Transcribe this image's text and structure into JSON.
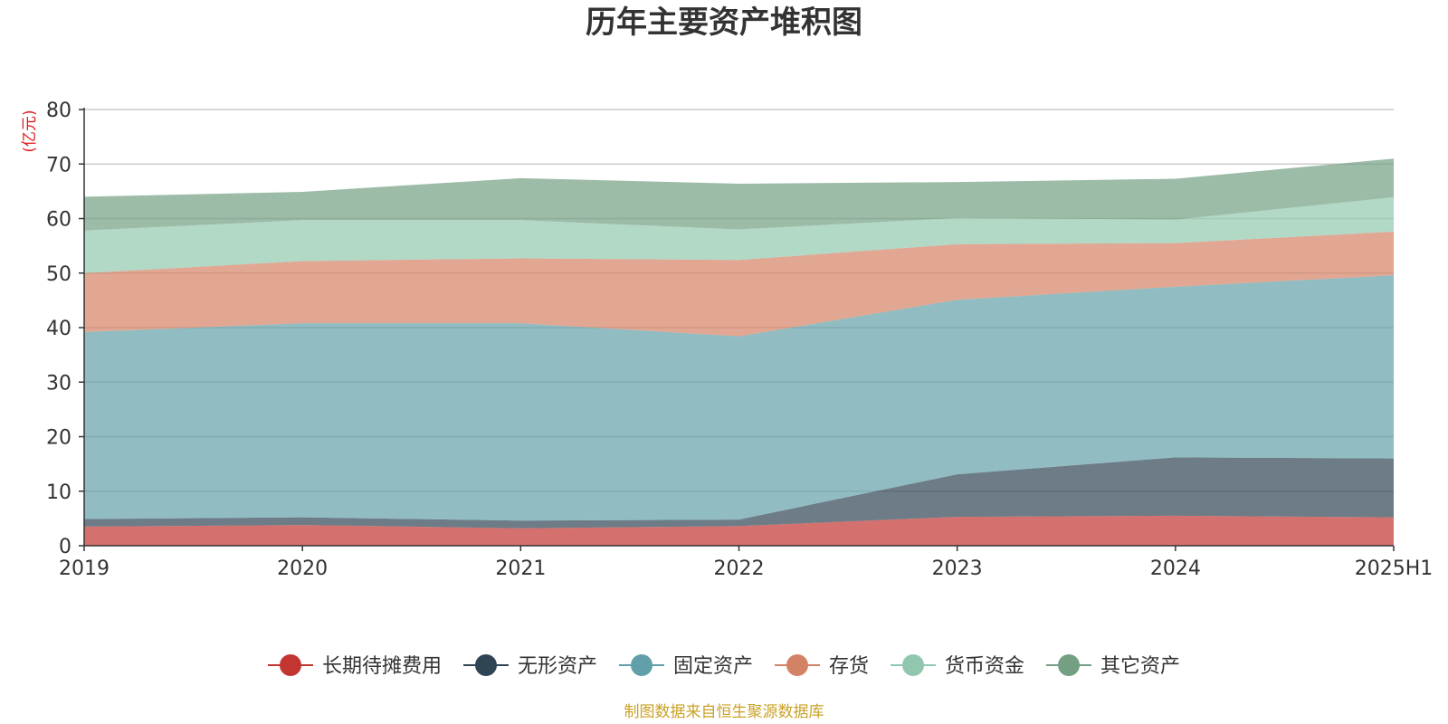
{
  "chart_data": {
    "type": "area",
    "stacked": true,
    "title": "历年主要资产堆积图",
    "ylabel": "(亿元)",
    "categories": [
      "2019",
      "2020",
      "2021",
      "2022",
      "2023",
      "2024",
      "2025H1"
    ],
    "ylim": [
      0,
      80
    ],
    "yticks": [
      0,
      10,
      20,
      30,
      40,
      50,
      60,
      70,
      80
    ],
    "grid": true,
    "legend_position": "bottom",
    "series": [
      {
        "name": "长期待摊费用",
        "color": "#c23531",
        "values": [
          3.5,
          3.8,
          3.2,
          3.6,
          5.3,
          5.5,
          5.2
        ]
      },
      {
        "name": "无形资产",
        "color": "#2f4554",
        "values": [
          1.4,
          1.4,
          1.4,
          1.2,
          7.8,
          10.7,
          10.8
        ]
      },
      {
        "name": "固定资产",
        "color": "#61a0a8",
        "values": [
          34.3,
          35.6,
          36.2,
          33.6,
          32.0,
          31.3,
          33.6
        ]
      },
      {
        "name": "存货",
        "color": "#d48265",
        "values": [
          10.8,
          11.4,
          11.9,
          14.0,
          10.2,
          8.0,
          8.0
        ]
      },
      {
        "name": "货币资金",
        "color": "#91c7ae",
        "values": [
          7.8,
          7.5,
          7.0,
          5.6,
          4.8,
          4.3,
          6.3
        ]
      },
      {
        "name": "其它资产",
        "color": "#749f83",
        "values": [
          6.2,
          5.2,
          7.7,
          8.4,
          6.6,
          7.5,
          7.1
        ]
      }
    ]
  },
  "footer": {
    "source": "制图数据来自恒生聚源数据库"
  }
}
